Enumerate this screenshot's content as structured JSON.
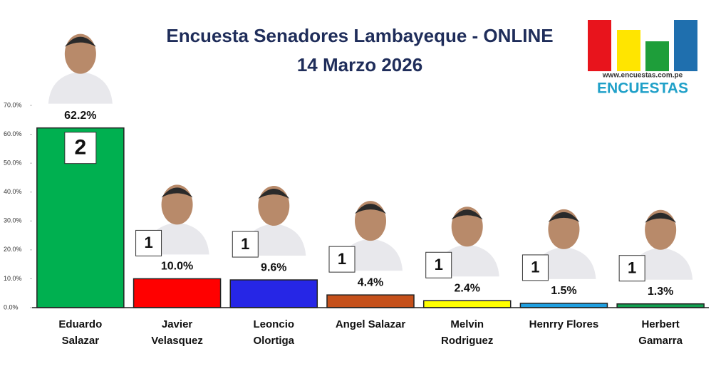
{
  "chart_data": {
    "type": "bar",
    "title": "Encuesta Senadores Lambayeque - ONLINE",
    "subtitle": "14 Marzo 2026",
    "categories": [
      "Eduardo Salazar",
      "Javier Velasquez",
      "Leoncio Olortiga",
      "Angel Salazar",
      "Melvin Rodriguez",
      "Henrry Flores",
      "Herbert Gamarra"
    ],
    "values": [
      62.2,
      10.0,
      9.6,
      4.4,
      2.4,
      1.5,
      1.3
    ],
    "value_labels": [
      "62.2%",
      "10.0%",
      "9.6%",
      "4.4%",
      "2.4%",
      "1.5%",
      "1.3%"
    ],
    "colors": [
      "#00b050",
      "#ff0000",
      "#2626e6",
      "#c5501a",
      "#ffff00",
      "#1f9fe0",
      "#12a050"
    ],
    "seats": [
      2,
      1,
      1,
      1,
      1,
      1,
      1
    ],
    "ylim": [
      0,
      70
    ],
    "yticks": [
      {
        "value": 0,
        "label": "0.0%"
      },
      {
        "value": 10,
        "label": "10.0%"
      },
      {
        "value": 20,
        "label": "20.0%"
      },
      {
        "value": 30,
        "label": "30.0%"
      },
      {
        "value": 40,
        "label": "40.0%"
      },
      {
        "value": 50,
        "label": "50.0%"
      },
      {
        "value": 60,
        "label": "60.0%"
      },
      {
        "value": 70,
        "label": "70.0%"
      }
    ],
    "grid": false,
    "logo": {
      "url": "www.encuestas.com.pe",
      "brand": "ENCUESTAS"
    }
  }
}
